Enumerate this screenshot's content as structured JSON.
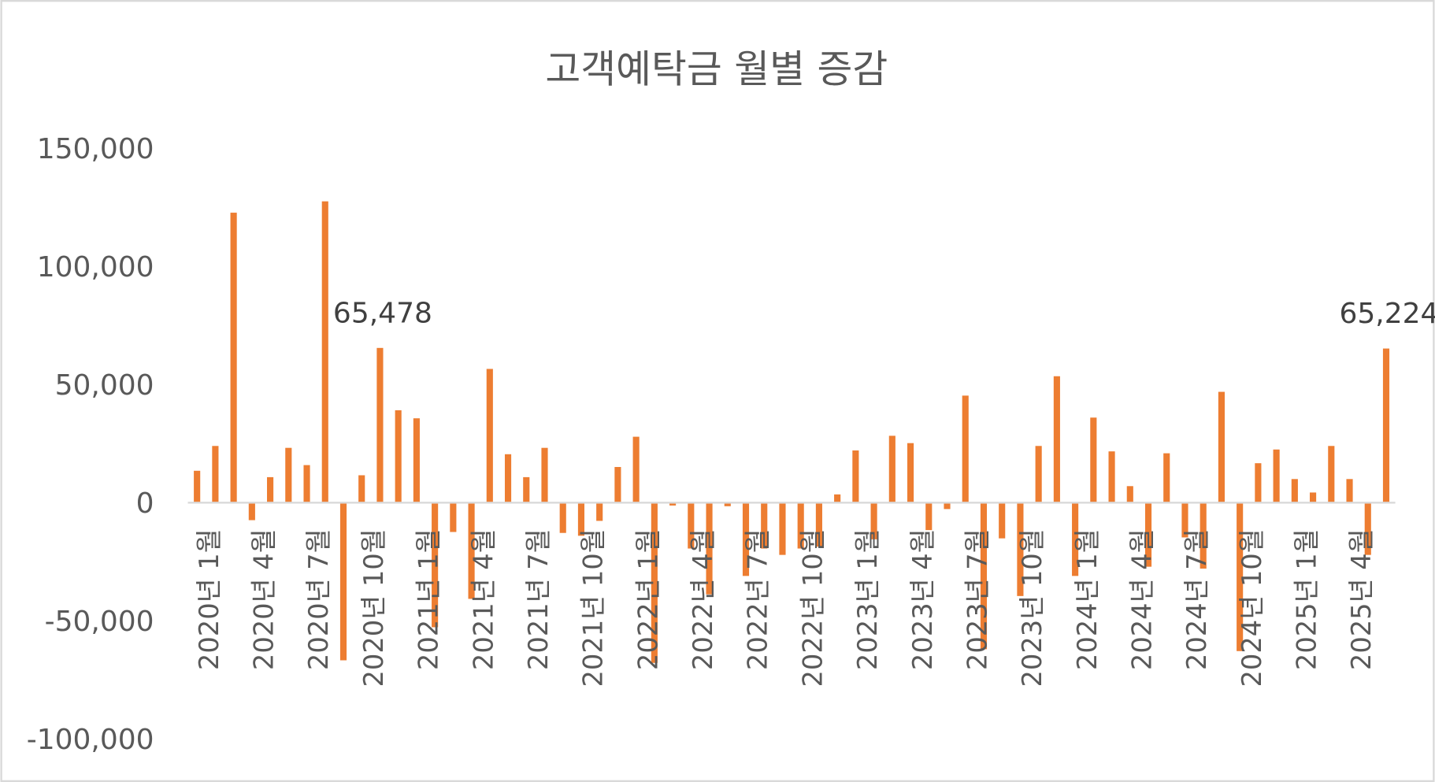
{
  "chart_data": {
    "type": "bar",
    "title": "고객예탁금 월별 증감",
    "xlabel": "",
    "ylabel": "",
    "ylim": [
      -100000,
      150000
    ],
    "y_ticks": [
      150000,
      100000,
      50000,
      0,
      -50000,
      -100000
    ],
    "y_tick_labels": [
      "150,000",
      "100,000",
      "50,000",
      "0",
      "-50,000",
      "-100,000"
    ],
    "grid": false,
    "legend": "none",
    "tick_interval": 3,
    "x_tick_labels": [
      "2020년 1월",
      "2020년 4월",
      "2020년 7월",
      "2020년 10월",
      "2021년 1월",
      "2021년 4월",
      "2021년 7월",
      "2021년 10월",
      "2022년 1월",
      "2022년 4월",
      "2022년 7월",
      "2022년 10월",
      "2023년 1월",
      "2023년 4월",
      "2023년 7월",
      "2023년 10월",
      "2024년 1월",
      "2024년 4월",
      "2024년 7월",
      "2024년 10월",
      "2025년 1월",
      "2025년 4월"
    ],
    "values": [
      13500,
      24000,
      122700,
      -7400,
      10800,
      23200,
      15900,
      127500,
      -66700,
      11600,
      65478,
      39100,
      35700,
      -52700,
      -12400,
      -40700,
      56600,
      20500,
      10800,
      23200,
      -12800,
      -14000,
      -7700,
      15100,
      27900,
      -67800,
      -1200,
      -19400,
      -38800,
      -1500,
      -31000,
      -19400,
      -22100,
      -19400,
      -18600,
      3500,
      22100,
      -15500,
      28300,
      25200,
      -11600,
      -2700,
      45300,
      -62000,
      -15100,
      -39500,
      24000,
      53500,
      -31000,
      36000,
      21700,
      7000,
      -27100,
      20900,
      -14700,
      -27900,
      46900,
      -62800,
      16700,
      22500,
      10000,
      4300,
      24000,
      10000,
      -22100,
      65224
    ],
    "data_labels": [
      {
        "index": 10,
        "text": "65,478"
      },
      {
        "index": 65,
        "text": "65,224"
      }
    ],
    "colors": {
      "bar": "#ED7D31",
      "axis": "#D9D9D9",
      "text": "#595959",
      "label": "#404040",
      "border": "#D9D9D9"
    }
  }
}
